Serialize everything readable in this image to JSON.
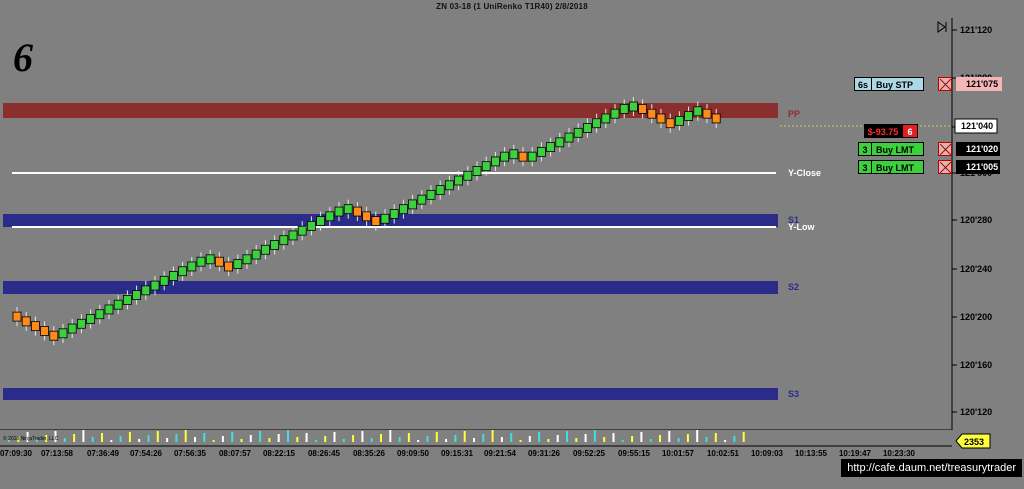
{
  "title": "ZN 03-18 (1 UniRenko T1R40) 2/8/2018",
  "corner_label": "6",
  "toolbar": {
    "collapse_icon": "collapse-right-icon"
  },
  "price_axis": {
    "ticks": [
      "121'120",
      "121'080",
      "121'040",
      "121'000",
      "120'280",
      "120'240",
      "120'200",
      "120'160",
      "120'120"
    ],
    "current_price": "121'040",
    "volume_badge": "2353"
  },
  "time_axis": {
    "ticks": [
      "07:09:30",
      "07:13:58",
      "07:36:49",
      "07:54:26",
      "07:56:35",
      "08:07:57",
      "08:22:15",
      "08:26:45",
      "08:35:26",
      "09:09:50",
      "09:15:31",
      "09:21:54",
      "09:31:26",
      "09:52:25",
      "09:55:15",
      "10:01:57",
      "10:02:51",
      "10:09:03",
      "10:13:55",
      "10:19:47",
      "10:23:30"
    ]
  },
  "levels": [
    {
      "name": "PP",
      "price": 121.045,
      "color": "#8b2e2e"
    },
    {
      "name": "Y-Close",
      "price": 121.001,
      "color": "#ffffff"
    },
    {
      "name": "S1",
      "price": 120.285,
      "color": "#2b2b8a"
    },
    {
      "name": "Y-Low",
      "price": 120.282,
      "color": "#ffffff"
    },
    {
      "name": "S2",
      "price": 120.232,
      "color": "#2b2b8a"
    },
    {
      "name": "S3",
      "price": 120.132,
      "color": "#2b2b8a"
    }
  ],
  "orders": [
    {
      "qty": "6s",
      "label": "Buy STP",
      "price": "121'075",
      "qty_color": "#add8e6",
      "label_color": "#add8e6",
      "price_color": "#f4b6b6"
    },
    {
      "qty": "3",
      "label": "Buy LMT",
      "price": "121'020",
      "qty_color": "#3cd13c",
      "label_color": "#3cd13c",
      "price_color": "#000000"
    },
    {
      "qty": "3",
      "label": "Buy LMT",
      "price": "121'005",
      "qty_color": "#3cd13c",
      "label_color": "#3cd13c",
      "price_color": "#000000"
    }
  ],
  "position": {
    "pnl": "$-93.75",
    "qty": "6"
  },
  "footer": {
    "copyright": "© 2018 NinjaTrader, LLC",
    "watermark": "http://cafe.daum.net/treasurytrader"
  },
  "colors": {
    "up_brick": "#3cd13c",
    "down_brick": "#ff8c1a",
    "background": "#808080"
  },
  "chart_data": {
    "type": "candlestick",
    "description_units": "price (32nds notation shown on axis)",
    "ylim": [
      "120'120",
      "121'120"
    ],
    "bricks": [
      {
        "o": 120.202,
        "c": 120.196,
        "dir": "down"
      },
      {
        "o": 120.198,
        "c": 120.192,
        "dir": "down"
      },
      {
        "o": 120.194,
        "c": 120.188,
        "dir": "down"
      },
      {
        "o": 120.19,
        "c": 120.184,
        "dir": "down"
      },
      {
        "o": 120.186,
        "c": 120.18,
        "dir": "down"
      },
      {
        "o": 120.182,
        "c": 120.188,
        "dir": "up"
      },
      {
        "o": 120.186,
        "c": 120.192,
        "dir": "up"
      },
      {
        "o": 120.19,
        "c": 120.196,
        "dir": "up"
      },
      {
        "o": 120.194,
        "c": 120.2,
        "dir": "up"
      },
      {
        "o": 120.198,
        "c": 120.204,
        "dir": "up"
      },
      {
        "o": 120.202,
        "c": 120.208,
        "dir": "up"
      },
      {
        "o": 120.206,
        "c": 120.212,
        "dir": "up"
      },
      {
        "o": 120.21,
        "c": 120.216,
        "dir": "up"
      },
      {
        "o": 120.214,
        "c": 120.22,
        "dir": "up"
      },
      {
        "o": 120.218,
        "c": 120.224,
        "dir": "up"
      },
      {
        "o": 120.222,
        "c": 120.228,
        "dir": "up"
      },
      {
        "o": 120.226,
        "c": 120.232,
        "dir": "up"
      },
      {
        "o": 120.23,
        "c": 120.236,
        "dir": "up"
      },
      {
        "o": 120.234,
        "c": 120.24,
        "dir": "up"
      },
      {
        "o": 120.238,
        "c": 120.244,
        "dir": "up"
      },
      {
        "o": 120.242,
        "c": 120.248,
        "dir": "up"
      },
      {
        "o": 120.246,
        "c": 120.25,
        "dir": "up"
      },
      {
        "o": 120.248,
        "c": 120.242,
        "dir": "down"
      },
      {
        "o": 120.244,
        "c": 120.238,
        "dir": "down"
      },
      {
        "o": 120.24,
        "c": 120.246,
        "dir": "up"
      },
      {
        "o": 120.244,
        "c": 120.25,
        "dir": "up"
      },
      {
        "o": 120.248,
        "c": 120.254,
        "dir": "up"
      },
      {
        "o": 120.252,
        "c": 120.258,
        "dir": "up"
      },
      {
        "o": 120.256,
        "c": 120.262,
        "dir": "up"
      },
      {
        "o": 120.26,
        "c": 120.266,
        "dir": "up"
      },
      {
        "o": 120.264,
        "c": 120.27,
        "dir": "up"
      },
      {
        "o": 120.268,
        "c": 120.274,
        "dir": "up"
      },
      {
        "o": 120.272,
        "c": 120.278,
        "dir": "up"
      },
      {
        "o": 120.276,
        "c": 120.282,
        "dir": "up"
      },
      {
        "o": 120.28,
        "c": 120.286,
        "dir": "up"
      },
      {
        "o": 120.284,
        "c": 120.29,
        "dir": "up"
      },
      {
        "o": 120.288,
        "c": 120.292,
        "dir": "up"
      },
      {
        "o": 120.29,
        "c": 120.284,
        "dir": "down"
      },
      {
        "o": 120.286,
        "c": 120.28,
        "dir": "down"
      },
      {
        "o": 120.282,
        "c": 120.276,
        "dir": "down"
      },
      {
        "o": 120.278,
        "c": 120.284,
        "dir": "up"
      },
      {
        "o": 120.282,
        "c": 120.288,
        "dir": "up"
      },
      {
        "o": 120.286,
        "c": 120.292,
        "dir": "up"
      },
      {
        "o": 120.29,
        "c": 120.296,
        "dir": "up"
      },
      {
        "o": 120.294,
        "c": 120.3,
        "dir": "up"
      },
      {
        "o": 120.298,
        "c": 120.304,
        "dir": "up"
      },
      {
        "o": 120.302,
        "c": 120.308,
        "dir": "up"
      },
      {
        "o": 120.306,
        "c": 120.312,
        "dir": "up"
      },
      {
        "o": 120.31,
        "c": 120.316,
        "dir": "up"
      },
      {
        "o": 120.314,
        "c": 120.32,
        "dir": "up"
      },
      {
        "o": 120.318,
        "c": 121.004,
        "dir": "up"
      },
      {
        "o": 121.002,
        "c": 121.008,
        "dir": "up"
      },
      {
        "o": 121.006,
        "c": 121.012,
        "dir": "up"
      },
      {
        "o": 121.01,
        "c": 121.016,
        "dir": "up"
      },
      {
        "o": 121.014,
        "c": 121.018,
        "dir": "up"
      },
      {
        "o": 121.016,
        "c": 121.01,
        "dir": "down"
      },
      {
        "o": 121.012,
        "c": 121.016,
        "dir": "up"
      },
      {
        "o": 121.014,
        "c": 121.02,
        "dir": "up"
      },
      {
        "o": 121.018,
        "c": 121.024,
        "dir": "up"
      },
      {
        "o": 121.022,
        "c": 121.028,
        "dir": "up"
      },
      {
        "o": 121.026,
        "c": 121.032,
        "dir": "up"
      },
      {
        "o": 121.03,
        "c": 121.036,
        "dir": "up"
      },
      {
        "o": 121.034,
        "c": 121.04,
        "dir": "up"
      },
      {
        "o": 121.038,
        "c": 121.044,
        "dir": "up"
      },
      {
        "o": 121.042,
        "c": 121.048,
        "dir": "up"
      },
      {
        "o": 121.046,
        "c": 121.052,
        "dir": "up"
      },
      {
        "o": 121.05,
        "c": 121.056,
        "dir": "up"
      },
      {
        "o": 121.054,
        "c": 121.058,
        "dir": "up"
      },
      {
        "o": 121.056,
        "c": 121.05,
        "dir": "down"
      },
      {
        "o": 121.052,
        "c": 121.046,
        "dir": "down"
      },
      {
        "o": 121.048,
        "c": 121.042,
        "dir": "down"
      },
      {
        "o": 121.044,
        "c": 121.038,
        "dir": "down"
      },
      {
        "o": 121.04,
        "c": 121.046,
        "dir": "up"
      },
      {
        "o": 121.044,
        "c": 121.05,
        "dir": "up"
      },
      {
        "o": 121.048,
        "c": 121.054,
        "dir": "up"
      },
      {
        "o": 121.052,
        "c": 121.046,
        "dir": "down"
      },
      {
        "o": 121.048,
        "c": 121.042,
        "dir": "down"
      }
    ]
  }
}
